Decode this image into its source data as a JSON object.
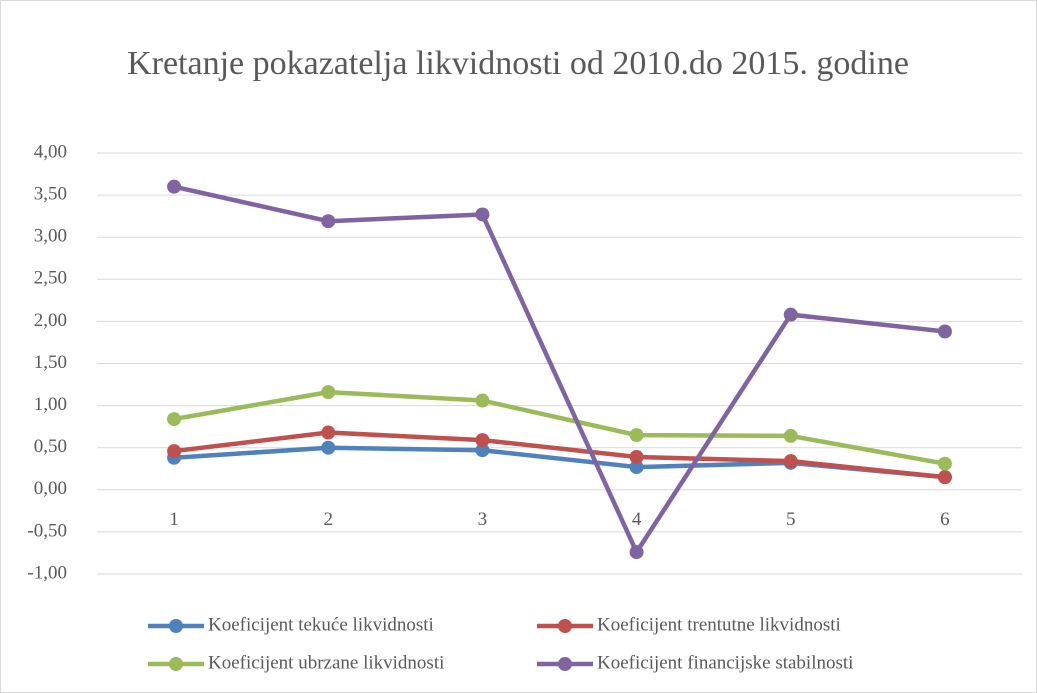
{
  "chart_data": {
    "type": "line",
    "title": "Kretanje pokazatelja likvidnosti od 2010.do 2015. godine",
    "categories": [
      "1",
      "2",
      "3",
      "4",
      "5",
      "6"
    ],
    "series": [
      {
        "name": "Koeficijent tekuće likvidnosti",
        "color": "#4f81bd",
        "values": [
          0.38,
          0.5,
          0.47,
          0.27,
          0.32,
          0.15
        ]
      },
      {
        "name": "Koeficijent trentutne likvidnosti",
        "color": "#c0504d",
        "values": [
          0.46,
          0.68,
          0.59,
          0.39,
          0.34,
          0.15
        ]
      },
      {
        "name": "Koeficijent ubrzane likvidnosti",
        "color": "#9bbb59",
        "values": [
          0.84,
          1.16,
          1.06,
          0.65,
          0.64,
          0.31
        ]
      },
      {
        "name": "Koeficijent financijske stabilnosti",
        "color": "#8064a2",
        "values": [
          3.6,
          3.19,
          3.27,
          -0.74,
          2.08,
          1.88
        ]
      }
    ],
    "ylim": [
      -1,
      4
    ],
    "yticks": [
      {
        "value": -1,
        "label": "-1,00"
      },
      {
        "value": -0.5,
        "label": "-0,50"
      },
      {
        "value": 0,
        "label": "0,00"
      },
      {
        "value": 0.5,
        "label": "0,50"
      },
      {
        "value": 1,
        "label": "1,00"
      },
      {
        "value": 1.5,
        "label": "1,50"
      },
      {
        "value": 2,
        "label": "2,00"
      },
      {
        "value": 2.5,
        "label": "2,50"
      },
      {
        "value": 3,
        "label": "3,00"
      },
      {
        "value": 3.5,
        "label": "3,50"
      },
      {
        "value": 4,
        "label": "4,00"
      }
    ],
    "grid": true,
    "legend": "bottom"
  }
}
